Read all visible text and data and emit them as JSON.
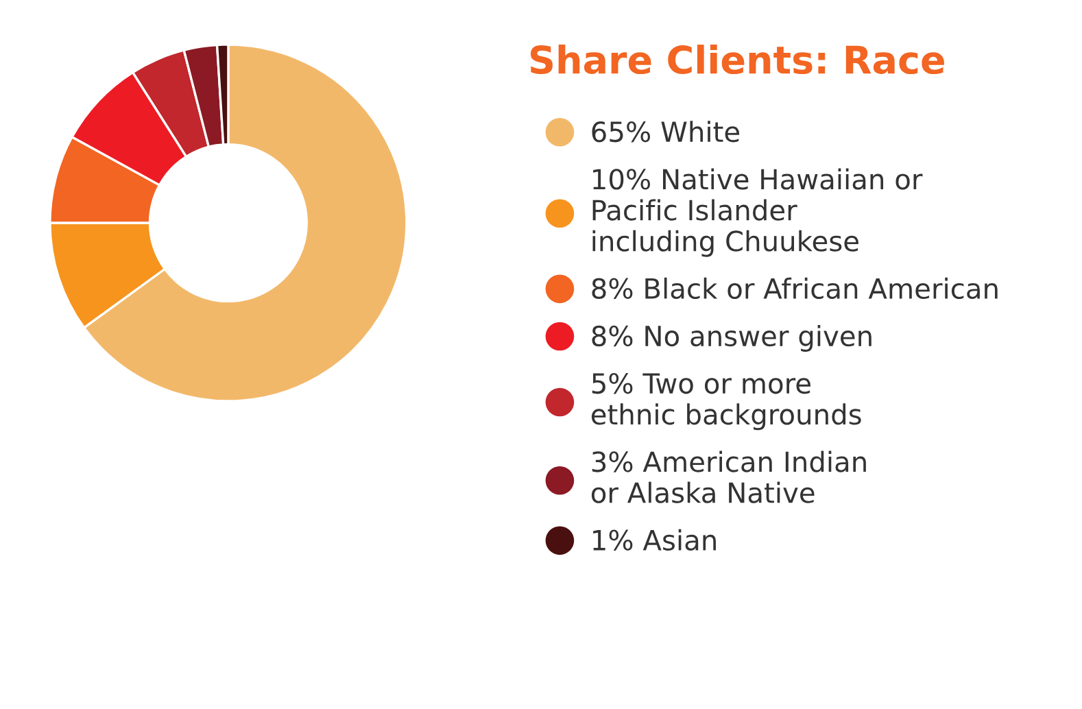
{
  "chart_data": {
    "type": "donut",
    "title": "Share Clients: Race",
    "categories": [
      "White",
      "Native Hawaiian or\nPacific Islander\nincluding Chuukese",
      "Black or African American",
      "No answer given",
      "Two or more\nethnic backgrounds",
      "American Indian\nor Alaska Native",
      "Asian"
    ],
    "values": [
      65,
      10,
      8,
      8,
      5,
      3,
      1
    ],
    "value_labels": [
      "65%",
      "10%",
      "8%",
      "8%",
      "5%",
      "3%",
      "1%"
    ],
    "colors": [
      "#f2b86a",
      "#f7941d",
      "#f26522",
      "#ed1c24",
      "#c1272d",
      "#8b1a24",
      "#4a1010"
    ],
    "legend": "right"
  }
}
